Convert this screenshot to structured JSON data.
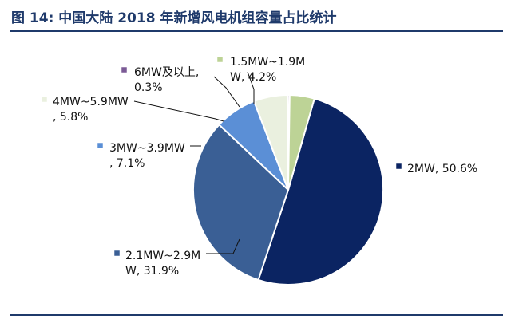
{
  "header": {
    "title": "图 14: 中国大陆 2018 年新增风电机组容量占比统计"
  },
  "chart_data": {
    "type": "pie",
    "title": "",
    "slices": [
      {
        "label_lines": [
          "2MW, 50.6%"
        ],
        "category": "2MW",
        "value": 50.6,
        "color": "#0b2462"
      },
      {
        "label_lines": [
          "2.1MW~2.9M",
          "W, 31.9%"
        ],
        "category": "2.1MW~2.9MW",
        "value": 31.9,
        "color": "#3a5f95"
      },
      {
        "label_lines": [
          "3MW~3.9MW",
          ", 7.1%"
        ],
        "category": "3MW~3.9MW",
        "value": 7.1,
        "color": "#5b8fd6"
      },
      {
        "label_lines": [
          "4MW~5.9MW",
          ", 5.8%"
        ],
        "category": "4MW~5.9MW",
        "value": 5.8,
        "color": "#eaf0df"
      },
      {
        "label_lines": [
          "6MW及以上,",
          "0.3%"
        ],
        "category": "6MW及以上",
        "value": 0.3,
        "color": "#7b5a96"
      },
      {
        "label_lines": [
          "1.5MW~1.9M",
          "W, 4.2%"
        ],
        "category": "1.5MW~1.9MW",
        "value": 4.2,
        "color": "#bdd396"
      }
    ]
  }
}
